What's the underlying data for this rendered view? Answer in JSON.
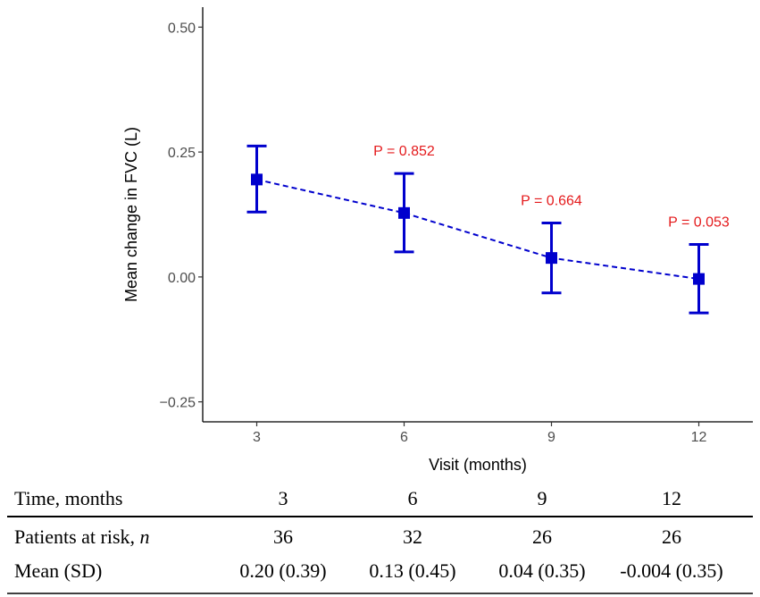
{
  "chart_data": {
    "type": "line",
    "x": [
      3,
      6,
      9,
      12
    ],
    "series": [
      {
        "name": "Mean change in FVC",
        "values": [
          0.195,
          0.128,
          0.038,
          -0.004
        ],
        "ci_upper": [
          0.262,
          0.207,
          0.108,
          0.065
        ],
        "ci_lower": [
          0.13,
          0.05,
          -0.032,
          -0.072
        ]
      }
    ],
    "annotations": [
      {
        "x": 6,
        "text": "P = 0.852"
      },
      {
        "x": 9,
        "text": "P = 0.664"
      },
      {
        "x": 12,
        "text": "P = 0.053"
      }
    ],
    "xlabel": "Visit (months)",
    "ylabel": "Mean change in FVC (L)",
    "yticks": [
      "−0.25",
      "0.00",
      "0.25",
      "0.50"
    ],
    "xticks": [
      "3",
      "6",
      "9",
      "12"
    ],
    "ylim": [
      -0.29,
      0.54
    ],
    "xlim": [
      1.9,
      13.1
    ],
    "grid": false,
    "colors": {
      "series": "#0000cd",
      "annotation": "#e41a1c",
      "axis": "#000000"
    }
  },
  "risk_table": {
    "header": {
      "label": "Time, months",
      "values": [
        "3",
        "6",
        "9",
        "12"
      ]
    },
    "rows": [
      {
        "label_main": "Patients at risk, ",
        "label_italic": "n",
        "values": [
          "36",
          "32",
          "26",
          "26"
        ]
      },
      {
        "label_main": "Mean (SD)",
        "label_italic": "",
        "values": [
          "0.20 (0.39)",
          "0.13 (0.45)",
          "0.04 (0.35)",
          "-0.004 (0.35)"
        ]
      }
    ]
  }
}
